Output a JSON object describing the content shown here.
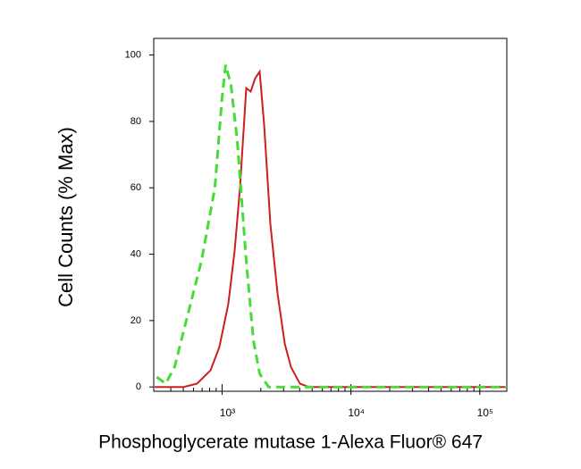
{
  "chart_data": {
    "type": "line",
    "xlabel": "Phosphoglycerate mutase 1-Alexa Fluor® 647",
    "ylabel": "Cell Counts (% Max)",
    "xscale": "log",
    "xlim": [
      295,
      162000
    ],
    "ylim": [
      -1.3,
      105
    ],
    "xticks": [
      {
        "value": 1000,
        "label": "10³"
      },
      {
        "value": 10000,
        "label": "10⁴"
      },
      {
        "value": 100000,
        "label": "10⁵"
      }
    ],
    "xminorticks": [
      400,
      500,
      600,
      700,
      800,
      900,
      2000,
      3000,
      4000,
      5000,
      6000,
      7000,
      8000,
      9000,
      20000,
      30000,
      40000,
      50000,
      60000,
      70000,
      80000,
      90000
    ],
    "yticks": [
      0,
      20,
      40,
      60,
      80,
      100
    ],
    "series": [
      {
        "color": "#cc1f1f",
        "dashed": false,
        "x": [
          300,
          502,
          639,
          813,
          953,
          1118,
          1251,
          1377,
          1540,
          1668,
          1807,
          1958,
          2120,
          2372,
          2697,
          3065,
          3425,
          4018,
          4720,
          162000
        ],
        "values": [
          0,
          0,
          1,
          5,
          12,
          25,
          41,
          60,
          90,
          89,
          93,
          95,
          79,
          49,
          28,
          13,
          6,
          1,
          0,
          0
        ]
      },
      {
        "color": "#44dd33",
        "dashed": true,
        "x": [
          311,
          365,
          428,
          544,
          692,
          880,
          1000,
          1066,
          1173,
          1313,
          1540,
          1750,
          1958,
          2297,
          162000
        ],
        "values": [
          3,
          1,
          6,
          22,
          38,
          60,
          87,
          97,
          91,
          74,
          38,
          14,
          4,
          0,
          0
        ]
      }
    ]
  }
}
